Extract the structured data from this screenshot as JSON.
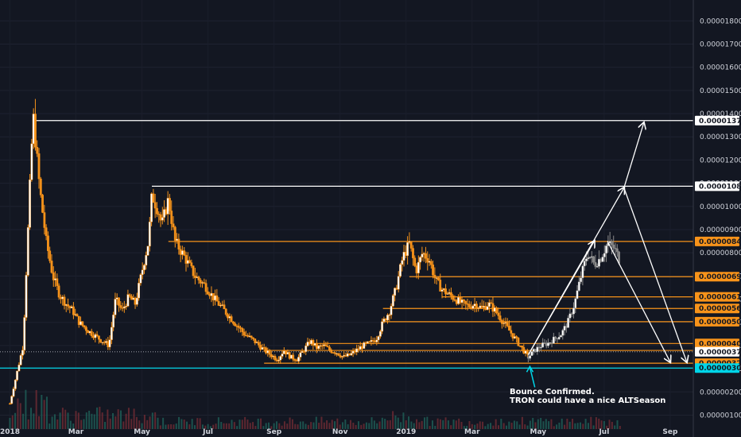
{
  "chart_data": {
    "type": "candlestick",
    "x_ticks": [
      "2018",
      "Mar",
      "May",
      "Jul",
      "Sep",
      "Nov",
      "2019",
      "Mar",
      "May",
      "Jul",
      "Sep"
    ],
    "y_ticks": [
      "0.00001800",
      "0.00001700",
      "0.00001600",
      "0.00001500",
      "0.00001400",
      "0.00001300",
      "0.00001200",
      "0.00001100",
      "0.00001000",
      "0.00000900",
      "0.00000800",
      "0.00000700",
      "0.00000600",
      "0.00000500",
      "0.00000400",
      "0.00000300",
      "0.00000200",
      "0.00000100"
    ],
    "ylim": [
      4e-07,
      1.89e-05
    ],
    "series_color": "#f7931a",
    "projection_color": "#8a8a8a",
    "levels": [
      {
        "value": 1.37e-05,
        "label": "0.00001370",
        "color": "#ffffff"
      },
      {
        "value": 1.087e-05,
        "label": "0.00001087",
        "color": "#ffffff"
      },
      {
        "value": 8.49e-06,
        "label": "0.00000849",
        "color": "#f7931a"
      },
      {
        "value": 6.97e-06,
        "label": "0.00000697",
        "color": "#f7931a"
      },
      {
        "value": 6.1e-06,
        "label": "0.00000610",
        "color": "#f7931a"
      },
      {
        "value": 5.6e-06,
        "label": "0.00000560",
        "color": "#f7931a"
      },
      {
        "value": 5.03e-06,
        "label": "0.00000503",
        "color": "#f7931a"
      },
      {
        "value": 4.09e-06,
        "label": "0.00000409",
        "color": "#f7931a"
      },
      {
        "value": 3.79e-06,
        "label": "0.00000379",
        "color": "#f7931a"
      },
      {
        "value": 3.24e-06,
        "label": "0.00000324",
        "color": "#f7931a"
      },
      {
        "value": 3.03e-06,
        "label": "0.00000303",
        "color": "#00d5e8"
      }
    ],
    "current_price": {
      "value": 3.73e-06,
      "label": "0.00000373"
    },
    "annotation": [
      "Bounce Confirmed.",
      "TRON could have a nice ALTSeason"
    ],
    "price_path": [
      [
        0,
        1.5e-06
      ],
      [
        4,
        4e-06
      ],
      [
        7,
        1.4e-05
      ],
      [
        9,
        1.08e-05
      ],
      [
        11,
        8.5e-06
      ],
      [
        13,
        7e-06
      ],
      [
        15,
        6.2e-06
      ],
      [
        17,
        5.8e-06
      ],
      [
        19,
        5.5e-06
      ],
      [
        21,
        5e-06
      ],
      [
        24,
        4.6e-06
      ],
      [
        27,
        4.3e-06
      ],
      [
        30,
        4e-06
      ],
      [
        32,
        6e-06
      ],
      [
        34,
        5.5e-06
      ],
      [
        36,
        6.1e-06
      ],
      [
        38,
        5.8e-06
      ],
      [
        40,
        7.2e-06
      ],
      [
        42,
        8.5e-06
      ],
      [
        43,
        1.05e-05
      ],
      [
        45,
        9.8e-06
      ],
      [
        46,
        9.2e-06
      ],
      [
        48,
        1.03e-05
      ],
      [
        50,
        8.5e-06
      ],
      [
        53,
        7.8e-06
      ],
      [
        56,
        7e-06
      ],
      [
        59,
        6.6e-06
      ],
      [
        62,
        6e-06
      ],
      [
        65,
        5.5e-06
      ],
      [
        68,
        5e-06
      ],
      [
        71,
        4.5e-06
      ],
      [
        74,
        4.2e-06
      ],
      [
        77,
        3.8e-06
      ],
      [
        79,
        3.6e-06
      ],
      [
        81,
        3.4e-06
      ],
      [
        83,
        3.8e-06
      ],
      [
        85,
        3.5e-06
      ],
      [
        87,
        3.4e-06
      ],
      [
        89,
        3.8e-06
      ],
      [
        91,
        4.2e-06
      ],
      [
        93,
        3.9e-06
      ],
      [
        95,
        4e-06
      ],
      [
        97,
        3.8e-06
      ],
      [
        99,
        3.7e-06
      ],
      [
        101,
        3.5e-06
      ],
      [
        103,
        3.6e-06
      ],
      [
        105,
        3.8e-06
      ],
      [
        107,
        4e-06
      ],
      [
        109,
        4.1e-06
      ],
      [
        111,
        4.3e-06
      ],
      [
        113,
        5e-06
      ],
      [
        115,
        5.5e-06
      ],
      [
        117,
        6.5e-06
      ],
      [
        119,
        7.8e-06
      ],
      [
        121,
        8.4e-06
      ],
      [
        123,
        7.2e-06
      ],
      [
        125,
        8e-06
      ],
      [
        127,
        7.7e-06
      ],
      [
        129,
        6.8e-06
      ],
      [
        131,
        6.4e-06
      ],
      [
        133,
        6.2e-06
      ],
      [
        135,
        6e-06
      ],
      [
        137,
        5.8e-06
      ],
      [
        139,
        5.7e-06
      ],
      [
        141,
        5.8e-06
      ],
      [
        143,
        5.6e-06
      ],
      [
        145,
        5.8e-06
      ],
      [
        147,
        5.5e-06
      ],
      [
        149,
        5.1e-06
      ],
      [
        151,
        4.7e-06
      ],
      [
        153,
        4.3e-06
      ],
      [
        155,
        3.9e-06
      ],
      [
        157,
        3.5e-06
      ]
    ],
    "projection_path": [
      [
        157,
        3.5e-06
      ],
      [
        159,
        3.8e-06
      ],
      [
        161,
        4e-06
      ],
      [
        163,
        4.1e-06
      ],
      [
        165,
        4.3e-06
      ],
      [
        167,
        4.5e-06
      ],
      [
        169,
        5e-06
      ],
      [
        171,
        5.8e-06
      ],
      [
        173,
        7e-06
      ],
      [
        175,
        8e-06
      ],
      [
        177,
        7.5e-06
      ],
      [
        179,
        7.8e-06
      ],
      [
        181,
        8.4e-06
      ],
      [
        183,
        8.2e-06
      ],
      [
        185,
        7.6e-06
      ]
    ],
    "x_range": [
      -3,
      207
    ]
  }
}
